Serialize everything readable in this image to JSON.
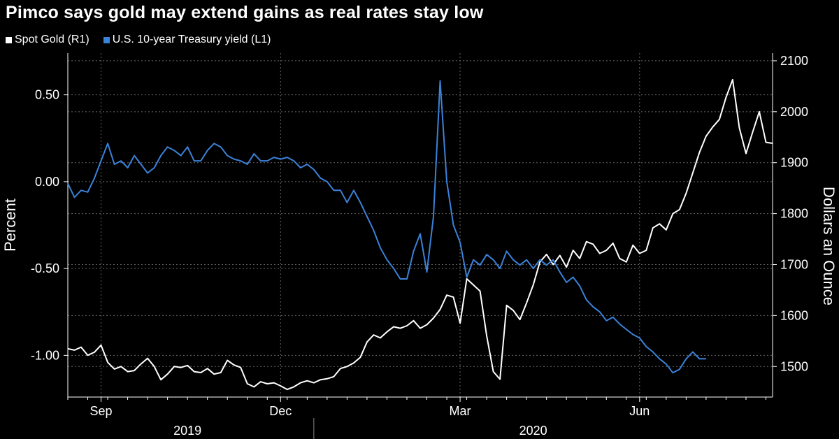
{
  "chart_data": {
    "type": "line",
    "title": "Pimco says gold may extend gains as real rates stay low",
    "series": [
      {
        "name": "Spot Gold (R1)",
        "axis": "right",
        "color": "#ffffff",
        "points": [
          [
            0,
            1535
          ],
          [
            1,
            1532
          ],
          [
            2,
            1538
          ],
          [
            3,
            1522
          ],
          [
            4,
            1528
          ],
          [
            5,
            1542
          ],
          [
            6,
            1508
          ],
          [
            7,
            1495
          ],
          [
            8,
            1500
          ],
          [
            9,
            1490
          ],
          [
            10,
            1492
          ],
          [
            11,
            1505
          ],
          [
            12,
            1516
          ],
          [
            13,
            1500
          ],
          [
            14,
            1474
          ],
          [
            15,
            1485
          ],
          [
            16,
            1500
          ],
          [
            17,
            1498
          ],
          [
            18,
            1502
          ],
          [
            19,
            1490
          ],
          [
            20,
            1488
          ],
          [
            21,
            1496
          ],
          [
            22,
            1485
          ],
          [
            23,
            1488
          ],
          [
            24,
            1512
          ],
          [
            25,
            1503
          ],
          [
            26,
            1498
          ],
          [
            27,
            1466
          ],
          [
            28,
            1460
          ],
          [
            29,
            1470
          ],
          [
            30,
            1466
          ],
          [
            31,
            1468
          ],
          [
            32,
            1462
          ],
          [
            33,
            1455
          ],
          [
            34,
            1460
          ],
          [
            35,
            1468
          ],
          [
            36,
            1472
          ],
          [
            37,
            1468
          ],
          [
            38,
            1474
          ],
          [
            39,
            1476
          ],
          [
            40,
            1480
          ],
          [
            41,
            1496
          ],
          [
            42,
            1500
          ],
          [
            43,
            1507
          ],
          [
            44,
            1518
          ],
          [
            45,
            1548
          ],
          [
            46,
            1562
          ],
          [
            47,
            1556
          ],
          [
            48,
            1568
          ],
          [
            49,
            1578
          ],
          [
            50,
            1575
          ],
          [
            51,
            1580
          ],
          [
            52,
            1590
          ],
          [
            53,
            1575
          ],
          [
            54,
            1582
          ],
          [
            55,
            1595
          ],
          [
            56,
            1612
          ],
          [
            57,
            1640
          ],
          [
            58,
            1636
          ],
          [
            59,
            1585
          ],
          [
            60,
            1672
          ],
          [
            61,
            1660
          ],
          [
            62,
            1648
          ],
          [
            63,
            1560
          ],
          [
            64,
            1490
          ],
          [
            65,
            1475
          ],
          [
            66,
            1620
          ],
          [
            67,
            1610
          ],
          [
            68,
            1592
          ],
          [
            69,
            1625
          ],
          [
            70,
            1660
          ],
          [
            71,
            1705
          ],
          [
            72,
            1720
          ],
          [
            73,
            1700
          ],
          [
            74,
            1718
          ],
          [
            75,
            1695
          ],
          [
            76,
            1728
          ],
          [
            77,
            1712
          ],
          [
            78,
            1745
          ],
          [
            79,
            1740
          ],
          [
            80,
            1722
          ],
          [
            81,
            1728
          ],
          [
            82,
            1742
          ],
          [
            83,
            1712
          ],
          [
            84,
            1705
          ],
          [
            85,
            1738
          ],
          [
            86,
            1722
          ],
          [
            87,
            1728
          ],
          [
            88,
            1772
          ],
          [
            89,
            1780
          ],
          [
            90,
            1768
          ],
          [
            91,
            1800
          ],
          [
            92,
            1808
          ],
          [
            93,
            1840
          ],
          [
            94,
            1880
          ],
          [
            95,
            1920
          ],
          [
            96,
            1952
          ],
          [
            97,
            1970
          ],
          [
            98,
            1985
          ],
          [
            99,
            2028
          ],
          [
            100,
            2063
          ],
          [
            101,
            1968
          ],
          [
            102,
            1918
          ],
          [
            103,
            1960
          ],
          [
            104,
            2000
          ],
          [
            105,
            1940
          ],
          [
            106,
            1938
          ]
        ]
      },
      {
        "name": "U.S. 10-year Treasury yield (L1)",
        "axis": "left",
        "color": "#3b82d9",
        "points": [
          [
            0,
            -0.01
          ],
          [
            1,
            -0.09
          ],
          [
            2,
            -0.05
          ],
          [
            3,
            -0.06
          ],
          [
            4,
            0.02
          ],
          [
            5,
            0.12
          ],
          [
            6,
            0.22
          ],
          [
            7,
            0.1
          ],
          [
            8,
            0.12
          ],
          [
            9,
            0.08
          ],
          [
            10,
            0.15
          ],
          [
            11,
            0.1
          ],
          [
            12,
            0.05
          ],
          [
            13,
            0.08
          ],
          [
            14,
            0.15
          ],
          [
            15,
            0.2
          ],
          [
            16,
            0.18
          ],
          [
            17,
            0.15
          ],
          [
            18,
            0.2
          ],
          [
            19,
            0.12
          ],
          [
            20,
            0.12
          ],
          [
            21,
            0.18
          ],
          [
            22,
            0.22
          ],
          [
            23,
            0.2
          ],
          [
            24,
            0.15
          ],
          [
            25,
            0.13
          ],
          [
            26,
            0.12
          ],
          [
            27,
            0.1
          ],
          [
            28,
            0.16
          ],
          [
            29,
            0.12
          ],
          [
            30,
            0.12
          ],
          [
            31,
            0.14
          ],
          [
            32,
            0.13
          ],
          [
            33,
            0.14
          ],
          [
            34,
            0.12
          ],
          [
            35,
            0.08
          ],
          [
            36,
            0.1
          ],
          [
            37,
            0.07
          ],
          [
            38,
            0.02
          ],
          [
            39,
            0.0
          ],
          [
            40,
            -0.05
          ],
          [
            41,
            -0.05
          ],
          [
            42,
            -0.12
          ],
          [
            43,
            -0.05
          ],
          [
            44,
            -0.12
          ],
          [
            45,
            -0.2
          ],
          [
            46,
            -0.28
          ],
          [
            47,
            -0.38
          ],
          [
            48,
            -0.45
          ],
          [
            49,
            -0.5
          ],
          [
            50,
            -0.56
          ],
          [
            51,
            -0.56
          ],
          [
            52,
            -0.4
          ],
          [
            53,
            -0.3
          ],
          [
            54,
            -0.52
          ],
          [
            55,
            -0.2
          ],
          [
            56,
            0.58
          ],
          [
            57,
            0.0
          ],
          [
            58,
            -0.25
          ],
          [
            59,
            -0.35
          ],
          [
            60,
            -0.55
          ],
          [
            61,
            -0.45
          ],
          [
            62,
            -0.48
          ],
          [
            63,
            -0.42
          ],
          [
            64,
            -0.45
          ],
          [
            65,
            -0.5
          ],
          [
            66,
            -0.4
          ],
          [
            67,
            -0.45
          ],
          [
            68,
            -0.48
          ],
          [
            69,
            -0.45
          ],
          [
            70,
            -0.5
          ],
          [
            71,
            -0.45
          ],
          [
            72,
            -0.48
          ],
          [
            73,
            -0.45
          ],
          [
            74,
            -0.52
          ],
          [
            75,
            -0.58
          ],
          [
            76,
            -0.55
          ],
          [
            77,
            -0.6
          ],
          [
            78,
            -0.68
          ],
          [
            79,
            -0.72
          ],
          [
            80,
            -0.75
          ],
          [
            81,
            -0.8
          ],
          [
            82,
            -0.78
          ],
          [
            83,
            -0.82
          ],
          [
            84,
            -0.85
          ],
          [
            85,
            -0.88
          ],
          [
            86,
            -0.9
          ],
          [
            87,
            -0.95
          ],
          [
            88,
            -0.98
          ],
          [
            89,
            -1.02
          ],
          [
            90,
            -1.05
          ],
          [
            91,
            -1.1
          ],
          [
            92,
            -1.08
          ],
          [
            93,
            -1.02
          ],
          [
            94,
            -0.98
          ],
          [
            95,
            -1.02
          ],
          [
            96,
            -1.02
          ]
        ]
      }
    ],
    "x_axis": {
      "month_ticks": [
        {
          "label": "Sep",
          "at": 5
        },
        {
          "label": "Dec",
          "at": 32
        },
        {
          "label": "Mar",
          "at": 59
        },
        {
          "label": "Jun",
          "at": 86
        }
      ],
      "year_labels": [
        {
          "label": "2019",
          "at": 18
        },
        {
          "label": "2020",
          "at": 70
        }
      ],
      "year_divider_at": 37
    },
    "y_left": {
      "label": "Percent",
      "ylim": [
        -1.24,
        0.74
      ],
      "ticks": [
        0.5,
        0.0,
        -0.5,
        -1.0
      ],
      "tick_labels": [
        "0.50",
        "0.00",
        "-0.50",
        "-1.00"
      ]
    },
    "y_right": {
      "label": "Dollars an Ounce",
      "ylim": [
        1440,
        2115
      ],
      "ticks": [
        2100,
        2000,
        1900,
        1800,
        1700,
        1600,
        1500
      ],
      "tick_labels": [
        "2100",
        "2000",
        "1900",
        "1800",
        "1700",
        "1600",
        "1500"
      ]
    },
    "grid": true,
    "legend_position": "top-left"
  },
  "colors": {
    "background": "#000000",
    "gold_line": "#ffffff",
    "yield_line": "#3b82d9",
    "grid": "#666666",
    "axis": "#ffffff"
  }
}
